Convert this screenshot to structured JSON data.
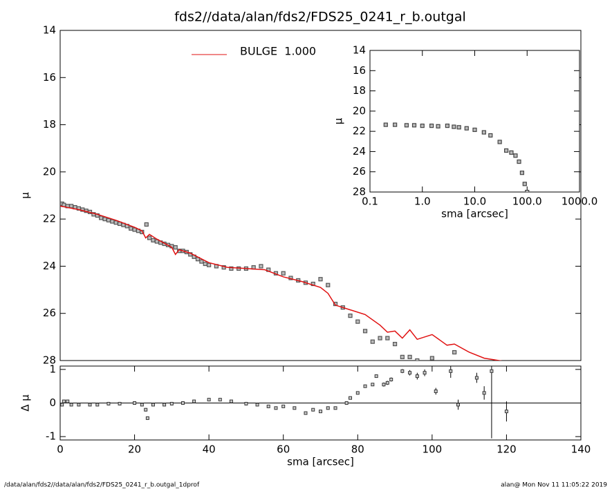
{
  "chart_data": [
    {
      "type": "scatter",
      "title": "fds2//data/alan/fds2/FDS25_0241_r_b.outgal",
      "ylabel": "μ",
      "xlim": [
        0,
        140
      ],
      "ylim": [
        14,
        28
      ],
      "y_inverted": true,
      "yticks": [
        14,
        16,
        18,
        20,
        22,
        24,
        26,
        28
      ],
      "marker_color": "#555555",
      "x": [
        0.5,
        1,
        2,
        3,
        4,
        5,
        6,
        7,
        8,
        9,
        10,
        11,
        12,
        13,
        14,
        15,
        16,
        17,
        18,
        19,
        20,
        21,
        22,
        23.2,
        24,
        25,
        26,
        27,
        28,
        29,
        30,
        31,
        32,
        33,
        34,
        35,
        36,
        37,
        38,
        39,
        40,
        42,
        44,
        46,
        48,
        50,
        52,
        54,
        56,
        58,
        60,
        62,
        64,
        66,
        68,
        70,
        72,
        74,
        76,
        78,
        80,
        82,
        84,
        86,
        88,
        90,
        92,
        94,
        96,
        100,
        106
      ],
      "values": [
        21.35,
        21.4,
        21.45,
        21.45,
        21.5,
        21.55,
        21.6,
        21.65,
        21.7,
        21.8,
        21.85,
        21.95,
        22.0,
        22.05,
        22.1,
        22.15,
        22.2,
        22.25,
        22.3,
        22.4,
        22.45,
        22.5,
        22.55,
        22.23,
        22.8,
        22.9,
        22.95,
        23.0,
        23.05,
        23.1,
        23.15,
        23.2,
        23.35,
        23.35,
        23.4,
        23.5,
        23.6,
        23.7,
        23.8,
        23.9,
        23.95,
        24.0,
        24.05,
        24.1,
        24.1,
        24.1,
        24.05,
        24.0,
        24.15,
        24.3,
        24.3,
        24.5,
        24.6,
        24.7,
        24.75,
        24.55,
        24.8,
        25.6,
        25.75,
        26.1,
        26.35,
        26.75,
        27.2,
        27.05,
        27.05,
        27.3,
        27.85,
        27.85,
        28.0,
        27.9,
        27.65
      ],
      "model": {
        "name": "BULGE  1.000",
        "color": "#e01010",
        "x": [
          0,
          5,
          10,
          15,
          20,
          22,
          23,
          24,
          26,
          30,
          31,
          32,
          35,
          40,
          45,
          50,
          55,
          60,
          65,
          70,
          72,
          74,
          78,
          82,
          86,
          88,
          90,
          92,
          94,
          96,
          100,
          104,
          106,
          110,
          114,
          120
        ],
        "values": [
          21.45,
          21.6,
          21.8,
          22.05,
          22.35,
          22.5,
          22.8,
          22.65,
          22.85,
          23.2,
          23.5,
          23.3,
          23.45,
          23.85,
          24.05,
          24.1,
          24.15,
          24.45,
          24.65,
          24.9,
          25.15,
          25.65,
          25.85,
          26.05,
          26.5,
          26.8,
          26.75,
          27.05,
          26.7,
          27.1,
          26.9,
          27.35,
          27.3,
          27.65,
          27.9,
          28.05
        ]
      }
    },
    {
      "type": "errorbar",
      "xlabel": "sma [arcsec]",
      "ylabel": "Δ μ",
      "xlim": [
        0,
        140
      ],
      "xticks": [
        0,
        20,
        40,
        60,
        80,
        100,
        120,
        140
      ],
      "ylim": [
        -1.1,
        1.1
      ],
      "yticks": [
        -1,
        0,
        1
      ],
      "zero_line": true,
      "x": [
        0.5,
        1,
        2,
        3,
        5,
        8,
        10,
        13,
        16,
        20,
        22,
        23,
        23.5,
        25,
        28,
        30,
        33,
        36,
        40,
        43,
        46,
        50,
        53,
        56,
        58,
        60,
        63,
        66,
        68,
        70,
        72,
        74,
        77,
        78,
        80,
        82,
        84,
        85,
        87,
        88,
        89,
        92,
        94,
        96,
        98,
        101,
        105,
        107,
        112,
        114,
        116,
        120
      ],
      "values": [
        -0.05,
        0.05,
        0.05,
        -0.05,
        -0.05,
        -0.05,
        -0.05,
        -0.02,
        -0.02,
        0.0,
        -0.05,
        -0.2,
        -0.45,
        -0.05,
        -0.05,
        -0.02,
        0.0,
        0.05,
        0.1,
        0.1,
        0.05,
        -0.02,
        -0.05,
        -0.1,
        -0.15,
        -0.1,
        -0.15,
        -0.3,
        -0.2,
        -0.25,
        -0.15,
        -0.15,
        0.0,
        0.15,
        0.3,
        0.5,
        0.55,
        0.8,
        0.55,
        0.6,
        0.7,
        0.95,
        0.9,
        0.8,
        0.9,
        0.35,
        0.95,
        -0.05,
        0.75,
        0.3,
        0.95,
        -0.25
      ],
      "errors": [
        0.02,
        0.02,
        0.02,
        0.02,
        0.02,
        0.02,
        0.02,
        0.02,
        0.02,
        0.02,
        0.02,
        0.05,
        0.05,
        0.02,
        0.02,
        0.02,
        0.02,
        0.02,
        0.02,
        0.02,
        0.02,
        0.02,
        0.02,
        0.02,
        0.02,
        0.02,
        0.03,
        0.03,
        0.03,
        0.03,
        0.03,
        0.03,
        0.03,
        0.03,
        0.04,
        0.04,
        0.04,
        0.04,
        0.06,
        0.06,
        0.06,
        0.06,
        0.08,
        0.1,
        0.1,
        0.1,
        0.2,
        0.15,
        0.15,
        0.2,
        2.0,
        0.3
      ]
    },
    {
      "type": "scatter",
      "xlabel": "sma [arcsec]",
      "ylabel": "μ",
      "xscale": "log",
      "xlim": [
        0.1,
        1000
      ],
      "xticks": [
        0.1,
        {
          "value": 1,
          "label": "1.0"
        },
        {
          "value": 10,
          "label": "10.0"
        },
        {
          "value": 100,
          "label": "100.0"
        },
        {
          "value": 1000,
          "label": "1000.0"
        }
      ],
      "ylim": [
        14,
        28
      ],
      "y_inverted": true,
      "yticks": [
        14,
        16,
        18,
        20,
        22,
        24,
        26,
        28
      ],
      "marker_color": "#444444",
      "x": [
        0.2,
        0.3,
        0.5,
        0.7,
        1,
        1.5,
        2,
        3,
        4,
        5,
        7,
        10,
        15,
        20,
        30,
        40,
        50,
        60,
        70,
        80,
        90,
        100
      ],
      "values": [
        21.35,
        21.35,
        21.4,
        21.4,
        21.45,
        21.45,
        21.5,
        21.45,
        21.55,
        21.6,
        21.7,
        21.85,
        22.1,
        22.4,
        23.05,
        23.9,
        24.1,
        24.4,
        25.0,
        26.1,
        27.2,
        28.0
      ]
    }
  ],
  "footer_left": "/data/alan/fds2//data/alan/fds2/FDS25_0241_r_b.outgal_1dprof",
  "footer_right": "alan@  Mon Nov 11 11:05:22 2019"
}
